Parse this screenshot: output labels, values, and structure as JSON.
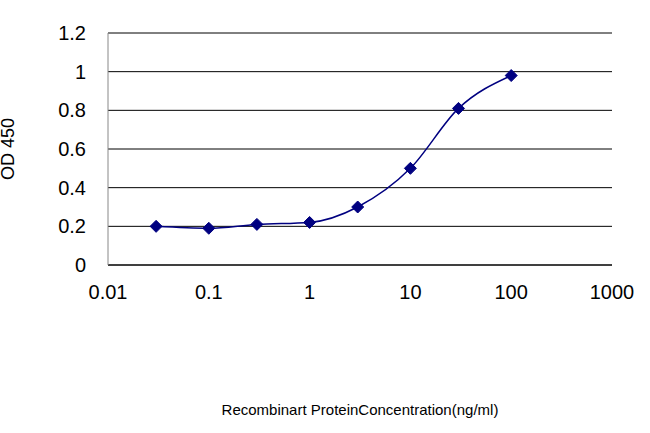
{
  "chart_data": {
    "type": "line",
    "x_label": "Recombinart ProteinConcentration(ng/ml)",
    "y_label": "OD 450",
    "x": [
      0.03,
      0.1,
      0.3,
      1,
      3,
      10,
      30,
      100
    ],
    "values": [
      0.2,
      0.19,
      0.21,
      0.22,
      0.3,
      0.5,
      0.81,
      0.98
    ],
    "color": "#000080",
    "marker": "diamond",
    "log": "x",
    "xlim": [
      0.01,
      1000
    ],
    "xticks": [
      0.01,
      0.1,
      1,
      10,
      100,
      1000
    ],
    "ylim": [
      0,
      1.2
    ],
    "yticks": [
      0,
      0.2,
      0.4,
      0.6,
      0.8,
      1,
      1.2
    ],
    "grid": true
  }
}
